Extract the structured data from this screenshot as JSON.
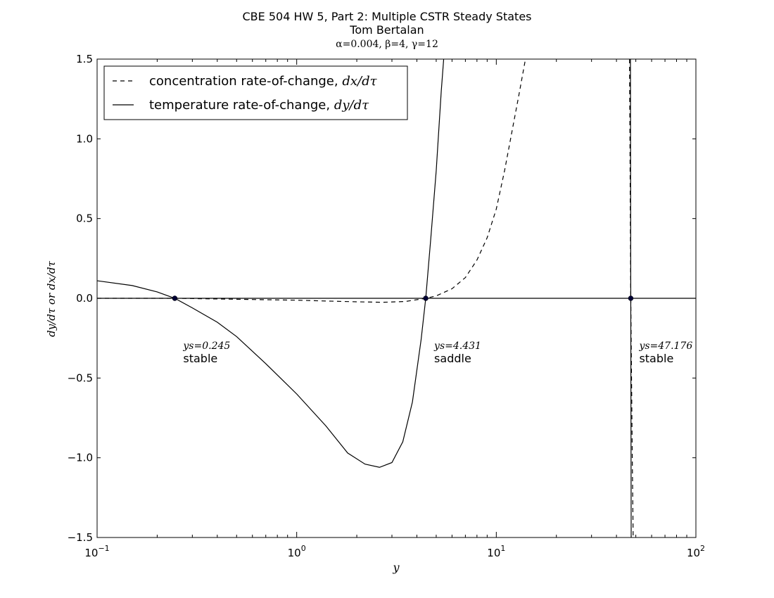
{
  "chart_data": {
    "type": "line",
    "title": "CBE 504 HW 5, Part 2: Multiple CSTR Steady States",
    "subtitle": "Tom Bertalan",
    "params_label": "α=0.004, β=4, γ=12",
    "xlabel": "y",
    "ylabel": "dy/dτ or dx/dτ",
    "x_scale": "log",
    "xlim": [
      0.1,
      100
    ],
    "ylim": [
      -1.5,
      1.5
    ],
    "x_ticks": [
      {
        "value": 0.1,
        "base": "10",
        "exp": "−1"
      },
      {
        "value": 1,
        "base": "10",
        "exp": "0"
      },
      {
        "value": 10,
        "base": "10",
        "exp": "1"
      },
      {
        "value": 100,
        "base": "10",
        "exp": "2"
      }
    ],
    "y_ticks": [
      {
        "value": 1.5,
        "label": "1.5"
      },
      {
        "value": 1.0,
        "label": "1.0"
      },
      {
        "value": 0.5,
        "label": "0.5"
      },
      {
        "value": 0.0,
        "label": "0.0"
      },
      {
        "value": -0.5,
        "label": "−0.5"
      },
      {
        "value": -1.0,
        "label": "−1.0"
      },
      {
        "value": -1.5,
        "label": "−1.5"
      }
    ],
    "legend": {
      "position": "top-left",
      "entries": [
        {
          "series": "dx",
          "label": "concentration rate-of-change, ",
          "math": "dx/dτ",
          "style": "dashed"
        },
        {
          "series": "dy",
          "label": "temperature rate-of-change, ",
          "math": "dy/dτ",
          "style": "solid"
        }
      ]
    },
    "series": [
      {
        "name": "concentration rate-of-change, dx/dτ",
        "key": "dx",
        "style": "dashed",
        "points": [
          [
            0.1,
            0.0
          ],
          [
            0.245,
            0.0
          ],
          [
            0.5,
            -0.006
          ],
          [
            1.0,
            -0.012
          ],
          [
            1.5,
            -0.018
          ],
          [
            2.0,
            -0.022
          ],
          [
            2.7,
            -0.025
          ],
          [
            3.5,
            -0.02
          ],
          [
            4.431,
            0.0
          ],
          [
            5.0,
            0.015
          ],
          [
            6.0,
            0.06
          ],
          [
            7.0,
            0.13
          ],
          [
            8.0,
            0.24
          ],
          [
            9.0,
            0.38
          ],
          [
            10.0,
            0.56
          ],
          [
            11.0,
            0.8
          ],
          [
            12.0,
            1.05
          ],
          [
            13.0,
            1.28
          ],
          [
            14.0,
            1.5
          ]
        ],
        "tail_points": [
          [
            46.5,
            1.5
          ],
          [
            47.176,
            0.0
          ],
          [
            48.0,
            -1.0
          ],
          [
            48.5,
            -1.5
          ]
        ]
      },
      {
        "name": "temperature rate-of-change, dy/dτ",
        "key": "dy",
        "style": "solid",
        "points": [
          [
            0.1,
            0.11
          ],
          [
            0.15,
            0.08
          ],
          [
            0.2,
            0.04
          ],
          [
            0.245,
            0.0
          ],
          [
            0.3,
            -0.06
          ],
          [
            0.4,
            -0.15
          ],
          [
            0.5,
            -0.24
          ],
          [
            0.7,
            -0.41
          ],
          [
            1.0,
            -0.6
          ],
          [
            1.4,
            -0.8
          ],
          [
            1.8,
            -0.97
          ],
          [
            2.2,
            -1.04
          ],
          [
            2.6,
            -1.06
          ],
          [
            3.0,
            -1.03
          ],
          [
            3.4,
            -0.9
          ],
          [
            3.8,
            -0.65
          ],
          [
            4.2,
            -0.26
          ],
          [
            4.431,
            0.0
          ],
          [
            4.7,
            0.38
          ],
          [
            5.0,
            0.8
          ],
          [
            5.3,
            1.3
          ],
          [
            5.45,
            1.5
          ]
        ],
        "tail_points": [
          [
            47.0,
            1.5
          ],
          [
            47.176,
            0.0
          ],
          [
            47.4,
            -1.5
          ]
        ]
      },
      {
        "name": "zero line",
        "key": "zero",
        "style": "solid",
        "points": [
          [
            0.1,
            0.0
          ],
          [
            100,
            0.0
          ]
        ]
      }
    ],
    "steady_states": [
      {
        "y": 0.245,
        "label_math": "ys=0.245",
        "stability": "stable"
      },
      {
        "y": 4.431,
        "label_math": "ys=4.431",
        "stability": "saddle"
      },
      {
        "y": 47.176,
        "label_math": "ys=47.176",
        "stability": "stable"
      }
    ]
  }
}
